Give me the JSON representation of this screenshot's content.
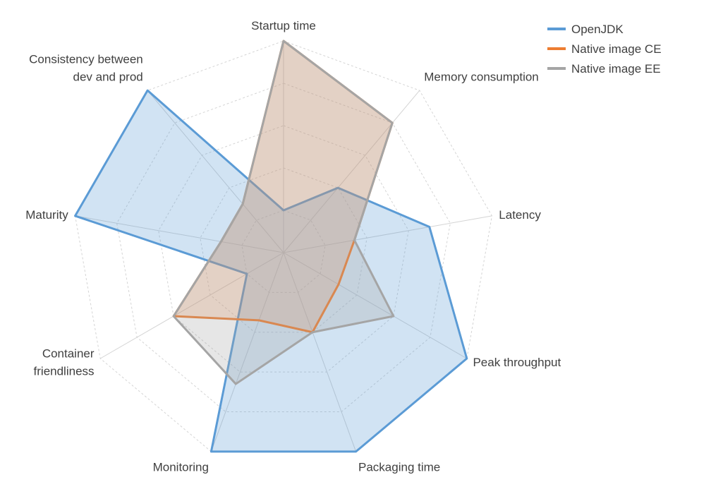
{
  "chart_data": {
    "type": "radar",
    "title": "",
    "axes": [
      "Startup time",
      "Memory consumption",
      "Latency",
      "Peak throughput",
      "Packaging time",
      "Monitoring",
      "Container friendliness",
      "Maturity",
      "Consistency between dev and prod"
    ],
    "axis_label_lines": [
      [
        "Startup time"
      ],
      [
        "Memory consumption"
      ],
      [
        "Latency"
      ],
      [
        "Peak throughput"
      ],
      [
        "Packaging time"
      ],
      [
        "Monitoring"
      ],
      [
        "Container",
        "friendliness"
      ],
      [
        "Maturity"
      ],
      [
        "Consistency between",
        "dev and prod"
      ]
    ],
    "range": [
      0,
      5
    ],
    "grid": true,
    "grid_levels": 5,
    "legend_position": "top-right",
    "series": [
      {
        "name": "OpenJDK",
        "color": "#5b9bd5",
        "fill": "rgba(91,155,213,0.28)",
        "values": [
          1.0,
          2.0,
          3.5,
          5.0,
          5.0,
          5.0,
          1.0,
          5.0,
          5.0
        ]
      },
      {
        "name": "Native image CE",
        "color": "#ed7d31",
        "fill": "rgba(237,125,49,0.22)",
        "values": [
          5.0,
          4.0,
          1.7,
          1.5,
          2.0,
          1.7,
          3.0,
          1.5,
          1.5
        ]
      },
      {
        "name": "Native image EE",
        "color": "#a5a5a5",
        "fill": "rgba(165,165,165,0.28)",
        "values": [
          5.0,
          4.0,
          1.7,
          3.0,
          2.0,
          3.3,
          3.0,
          1.5,
          1.5
        ]
      }
    ]
  }
}
